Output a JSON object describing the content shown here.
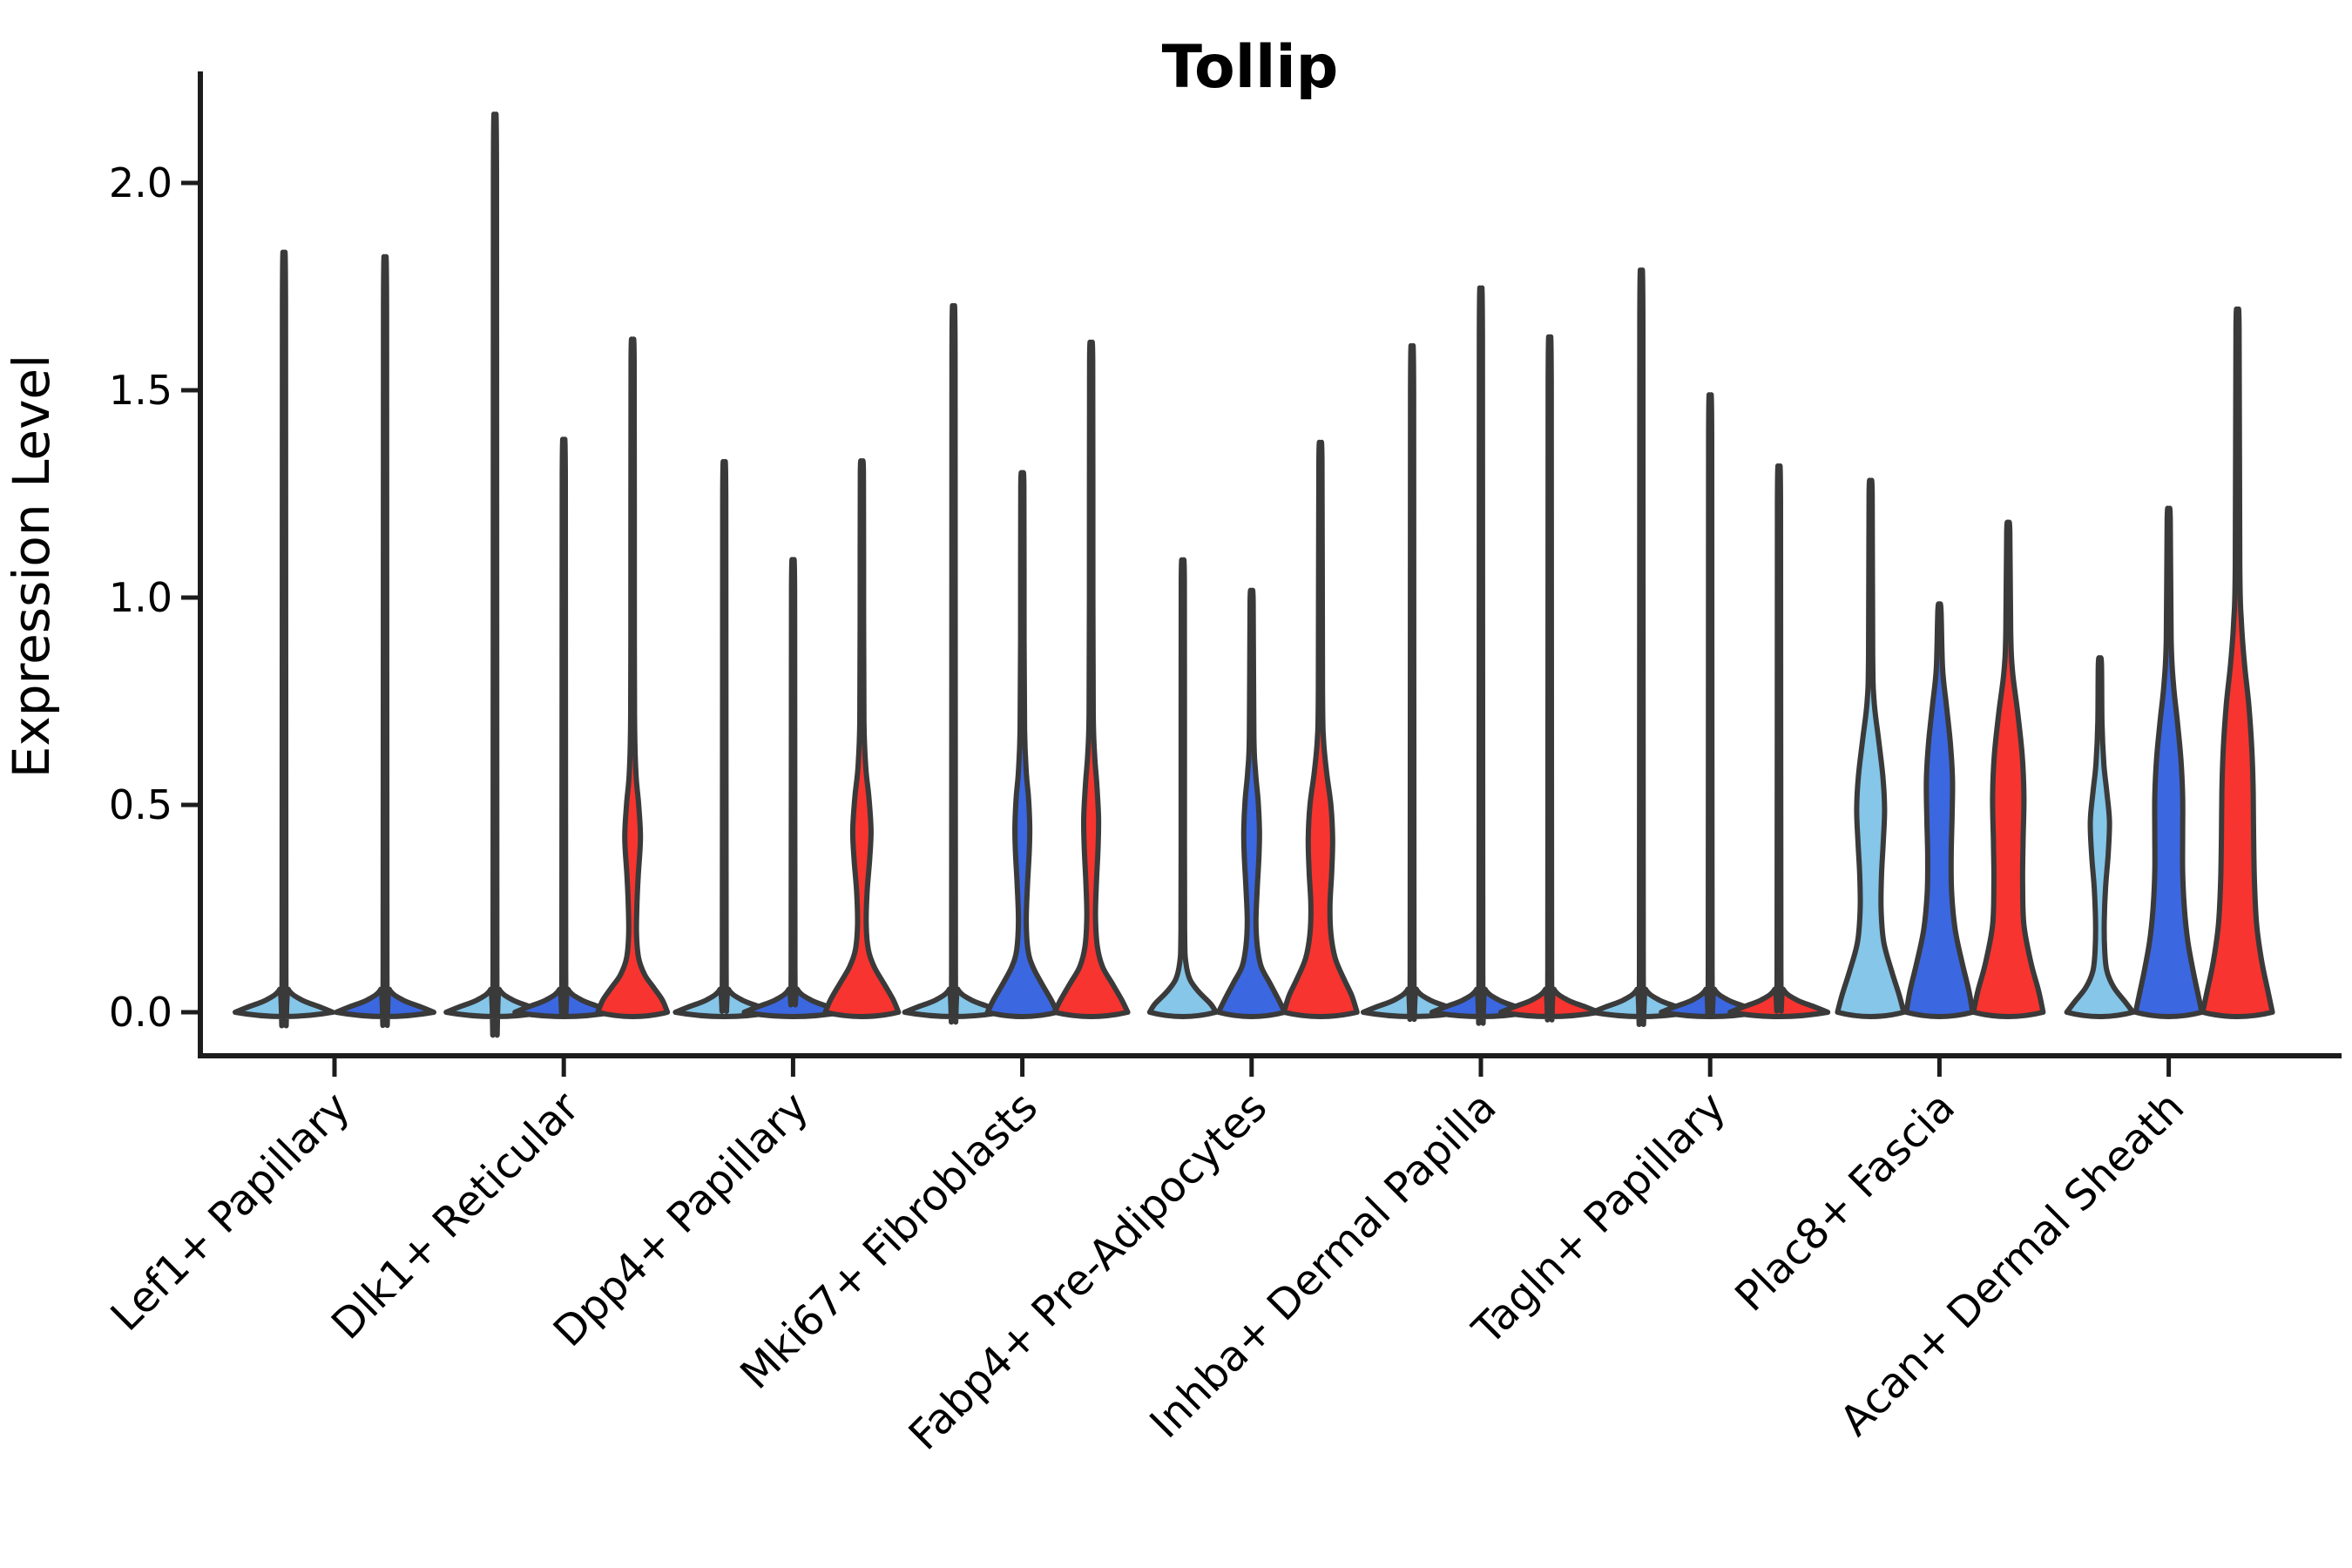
{
  "title": "Tollip",
  "axes": {
    "y_label": "Expression Level",
    "y_tick_values": [
      0.0,
      0.5,
      1.0,
      1.5,
      2.0
    ],
    "y_tick_labels": [
      "0.0",
      "0.5",
      "1.0",
      "1.5",
      "2.0"
    ]
  },
  "colors": {
    "series_light_blue": "#85C6E9",
    "series_dark_blue": "#3B67E0",
    "series_red": "#F7342F",
    "violin_edge": "#3A3A3A",
    "spine": "#1C1C1C",
    "text": "#000000",
    "background": "#FFFFFF"
  },
  "chart_data": {
    "type": "violin",
    "title": "Tollip",
    "xlabel": "",
    "ylabel": "Expression Level",
    "ylim": [
      0,
      2.26
    ],
    "yticks": [
      0.0,
      0.5,
      1.0,
      1.5,
      2.0
    ],
    "grid": false,
    "legend": null,
    "categories": [
      "Lef1+ Papillary",
      "Dlk1+ Reticular",
      "Dpp4+ Papillary",
      "Mki67+ Fibroblasts",
      "Fabp4+ Pre-Adipocytes",
      "Inhba+ Dermal Papilla",
      "Tagln+ Papillary",
      "Plac8+ Fascia",
      "Acan+ Dermal Sheath"
    ],
    "series": [
      {
        "id": "light-blue",
        "color": "#85C6E9"
      },
      {
        "id": "dark-blue",
        "color": "#3B67E0"
      },
      {
        "id": "red",
        "color": "#F7342F"
      }
    ],
    "note": "Each violin: series index, max expression (tip of spike), and for violins with visible bodies a KDE profile of [expression_value, half_width_px]. Spike violins are near-zero-width distributions (flat pancake at 0 plus thin line to max).",
    "groups": [
      {
        "violins": [
          {
            "series": 0,
            "max": 1.71,
            "shape": "spike"
          },
          {
            "series": 1,
            "max": 1.7,
            "shape": "spike"
          }
        ]
      },
      {
        "violins": [
          {
            "series": 0,
            "max": 2.02,
            "shape": "spike"
          },
          {
            "series": 1,
            "max": 1.29,
            "shape": "spike"
          },
          {
            "series": 2,
            "max": 1.57,
            "shape": "body",
            "profile": [
              [
                0,
                40
              ],
              [
                0.03,
                34
              ],
              [
                0.06,
                24
              ],
              [
                0.09,
                14
              ],
              [
                0.13,
                7
              ],
              [
                0.19,
                4.5
              ],
              [
                0.26,
                5
              ],
              [
                0.33,
                6.5
              ],
              [
                0.42,
                9
              ],
              [
                0.5,
                7
              ],
              [
                0.57,
                4
              ],
              [
                0.68,
                2.4
              ],
              [
                0.9,
                2
              ],
              [
                1.57,
                1.8
              ]
            ]
          }
        ]
      },
      {
        "violins": [
          {
            "series": 0,
            "max": 1.24,
            "shape": "spike"
          },
          {
            "series": 1,
            "max": 1.02,
            "shape": "spike"
          },
          {
            "series": 2,
            "max": 1.3,
            "shape": "body",
            "profile": [
              [
                0,
                42
              ],
              [
                0.03,
                36
              ],
              [
                0.07,
                25
              ],
              [
                0.11,
                14
              ],
              [
                0.15,
                7.5
              ],
              [
                0.21,
                5
              ],
              [
                0.29,
                6
              ],
              [
                0.37,
                9
              ],
              [
                0.44,
                10.5
              ],
              [
                0.52,
                8
              ],
              [
                0.59,
                4.5
              ],
              [
                0.7,
                2.4
              ],
              [
                0.95,
                2
              ],
              [
                1.3,
                1.8
              ]
            ]
          }
        ]
      },
      {
        "violins": [
          {
            "series": 0,
            "max": 1.59,
            "shape": "spike"
          },
          {
            "series": 1,
            "max": 1.27,
            "shape": "body",
            "profile": [
              [
                0,
                40
              ],
              [
                0.03,
                33
              ],
              [
                0.07,
                22
              ],
              [
                0.11,
                12
              ],
              [
                0.15,
                6.5
              ],
              [
                0.22,
                4.5
              ],
              [
                0.31,
                6
              ],
              [
                0.39,
                8
              ],
              [
                0.45,
                8.5
              ],
              [
                0.52,
                7
              ],
              [
                0.58,
                4.5
              ],
              [
                0.68,
                2.6
              ],
              [
                0.9,
                2
              ],
              [
                1.27,
                1.8
              ]
            ]
          },
          {
            "series": 2,
            "max": 1.57,
            "shape": "body",
            "profile": [
              [
                0,
                42
              ],
              [
                0.03,
                35
              ],
              [
                0.07,
                24
              ],
              [
                0.11,
                13
              ],
              [
                0.16,
                7
              ],
              [
                0.23,
                5
              ],
              [
                0.31,
                6
              ],
              [
                0.4,
                8
              ],
              [
                0.47,
                8.5
              ],
              [
                0.55,
                6.5
              ],
              [
                0.62,
                4
              ],
              [
                0.72,
                2.4
              ],
              [
                1.0,
                2
              ],
              [
                1.57,
                1.8
              ]
            ]
          }
        ]
      },
      {
        "violins": [
          {
            "series": 0,
            "max": 1.04,
            "shape": "body",
            "profile": [
              [
                0,
                38
              ],
              [
                0.02,
                32
              ],
              [
                0.05,
                18
              ],
              [
                0.08,
                8
              ],
              [
                0.12,
                3.5
              ],
              [
                0.18,
                2.2
              ],
              [
                0.4,
                1.9
              ],
              [
                1.04,
                1.8
              ]
            ]
          },
          {
            "series": 1,
            "max": 0.99,
            "shape": "body",
            "profile": [
              [
                0,
                38
              ],
              [
                0.03,
                31
              ],
              [
                0.07,
                21
              ],
              [
                0.11,
                11
              ],
              [
                0.16,
                6.5
              ],
              [
                0.22,
                5
              ],
              [
                0.3,
                6.5
              ],
              [
                0.38,
                8.5
              ],
              [
                0.44,
                9
              ],
              [
                0.51,
                7.5
              ],
              [
                0.58,
                4.5
              ],
              [
                0.67,
                2.6
              ],
              [
                0.99,
                1.8
              ]
            ]
          },
          {
            "series": 2,
            "max": 1.33,
            "shape": "body",
            "profile": [
              [
                0,
                42
              ],
              [
                0.04,
                36
              ],
              [
                0.08,
                27
              ],
              [
                0.13,
                17
              ],
              [
                0.19,
                12
              ],
              [
                0.26,
                11
              ],
              [
                0.34,
                13
              ],
              [
                0.42,
                14
              ],
              [
                0.5,
                12
              ],
              [
                0.58,
                7
              ],
              [
                0.66,
                3.5
              ],
              [
                0.78,
                2.4
              ],
              [
                1.33,
                1.8
              ]
            ]
          }
        ]
      },
      {
        "violins": [
          {
            "series": 0,
            "max": 1.5,
            "shape": "spike"
          },
          {
            "series": 1,
            "max": 1.63,
            "shape": "spike"
          },
          {
            "series": 2,
            "max": 1.52,
            "shape": "spike"
          }
        ]
      },
      {
        "violins": [
          {
            "series": 0,
            "max": 1.67,
            "shape": "spike"
          },
          {
            "series": 1,
            "max": 1.39,
            "shape": "spike"
          },
          {
            "series": 2,
            "max": 1.23,
            "shape": "spike"
          }
        ]
      },
      {
        "violins": [
          {
            "series": 0,
            "max": 1.25,
            "shape": "body",
            "profile": [
              [
                0,
                38
              ],
              [
                0.04,
                33
              ],
              [
                0.1,
                24
              ],
              [
                0.17,
                15
              ],
              [
                0.25,
                12
              ],
              [
                0.33,
                12.5
              ],
              [
                0.41,
                14.5
              ],
              [
                0.49,
                16
              ],
              [
                0.57,
                14
              ],
              [
                0.66,
                9
              ],
              [
                0.75,
                4
              ],
              [
                0.86,
                2.4
              ],
              [
                1.25,
                1.8
              ]
            ]
          },
          {
            "series": 1,
            "max": 0.97,
            "shape": "body",
            "profile": [
              [
                0,
                38
              ],
              [
                0.05,
                34
              ],
              [
                0.12,
                26
              ],
              [
                0.2,
                18
              ],
              [
                0.29,
                14
              ],
              [
                0.38,
                13.5
              ],
              [
                0.47,
                14.5
              ],
              [
                0.56,
                15
              ],
              [
                0.65,
                12.5
              ],
              [
                0.74,
                8
              ],
              [
                0.83,
                3.6
              ],
              [
                0.97,
                1.8
              ]
            ]
          },
          {
            "series": 2,
            "max": 1.16,
            "shape": "body",
            "profile": [
              [
                0,
                40
              ],
              [
                0.05,
                35
              ],
              [
                0.12,
                26
              ],
              [
                0.21,
                18
              ],
              [
                0.31,
                16.5
              ],
              [
                0.41,
                17
              ],
              [
                0.52,
                18
              ],
              [
                0.62,
                16
              ],
              [
                0.72,
                11
              ],
              [
                0.82,
                5
              ],
              [
                0.92,
                2.8
              ],
              [
                1.16,
                1.8
              ]
            ]
          }
        ]
      },
      {
        "violins": [
          {
            "series": 0,
            "max": 0.84,
            "shape": "body",
            "profile": [
              [
                0,
                38
              ],
              [
                0.025,
                29
              ],
              [
                0.06,
                16
              ],
              [
                0.1,
                8
              ],
              [
                0.15,
                5.5
              ],
              [
                0.22,
                5
              ],
              [
                0.3,
                6.5
              ],
              [
                0.38,
                9.5
              ],
              [
                0.46,
                11
              ],
              [
                0.53,
                8
              ],
              [
                0.6,
                4.5
              ],
              [
                0.7,
                2.4
              ],
              [
                0.84,
                1.8
              ]
            ]
          },
          {
            "series": 1,
            "max": 1.19,
            "shape": "body",
            "profile": [
              [
                0,
                38
              ],
              [
                0.04,
                34
              ],
              [
                0.1,
                28
              ],
              [
                0.17,
                22
              ],
              [
                0.25,
                18
              ],
              [
                0.34,
                16
              ],
              [
                0.43,
                16
              ],
              [
                0.52,
                16
              ],
              [
                0.61,
                14
              ],
              [
                0.7,
                10
              ],
              [
                0.79,
                5.5
              ],
              [
                0.9,
                2.8
              ],
              [
                1.19,
                1.8
              ]
            ]
          },
          {
            "series": 2,
            "max": 1.65,
            "shape": "body",
            "profile": [
              [
                0,
                40
              ],
              [
                0.05,
                35
              ],
              [
                0.12,
                28
              ],
              [
                0.21,
                22
              ],
              [
                0.31,
                19.5
              ],
              [
                0.42,
                18.5
              ],
              [
                0.53,
                18
              ],
              [
                0.63,
                16.5
              ],
              [
                0.74,
                13
              ],
              [
                0.84,
                8
              ],
              [
                0.94,
                4.5
              ],
              [
                1.08,
                2.6
              ],
              [
                1.65,
                1.8
              ]
            ]
          }
        ]
      }
    ]
  }
}
